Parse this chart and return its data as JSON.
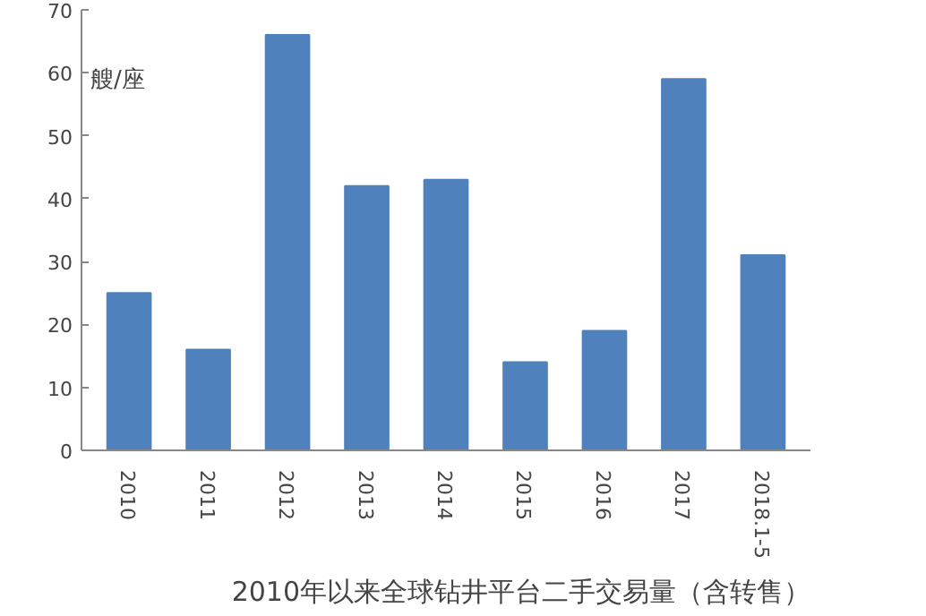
{
  "chart_data": {
    "type": "bar",
    "title": "2010年以来全球钻井平台二手交易量（含转售）",
    "ylabel": "艘/座",
    "categories": [
      "2010",
      "2011",
      "2012",
      "2013",
      "2014",
      "2015",
      "2016",
      "2017",
      "2018.1-5"
    ],
    "values": [
      25,
      16,
      66,
      42,
      43,
      14,
      19,
      59,
      31
    ],
    "color": "#4f81bd",
    "ylim": [
      0,
      70
    ],
    "yticks": [
      0,
      10,
      20,
      30,
      40,
      50,
      60,
      70
    ],
    "grid": false
  }
}
